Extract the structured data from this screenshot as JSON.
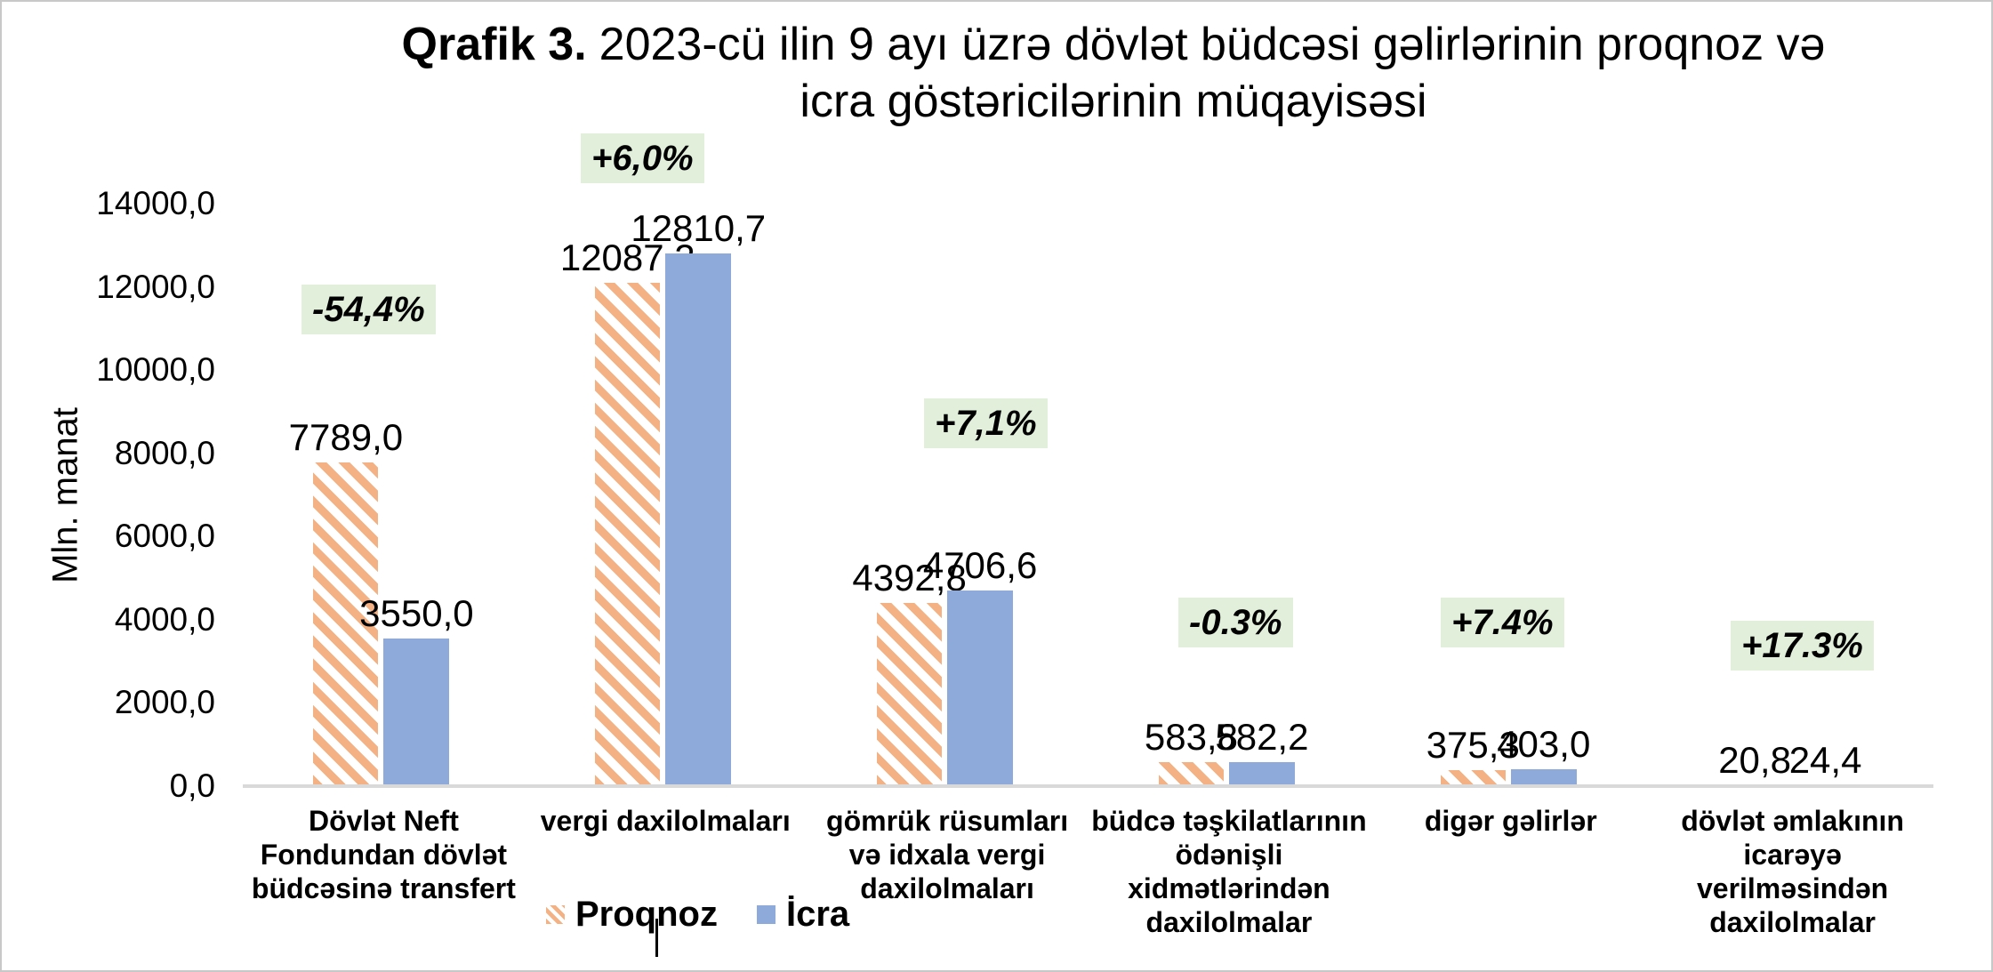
{
  "chart_data": {
    "type": "bar",
    "title": {
      "prefix": "Qrafik 3.",
      "line1_rest": "2023-cü ilin 9 ayı üzrə dövlət büdcəsi gəlirlərinin proqnoz və",
      "line2": "icra göstəricilərinin müqayisəsi"
    },
    "ylabel": "Mln. manat",
    "ylim": [
      0,
      14000
    ],
    "grid": false,
    "legend_position": "bottom-left",
    "yticks": [
      {
        "value": 0,
        "label": "0,0"
      },
      {
        "value": 2000,
        "label": "2000,0"
      },
      {
        "value": 4000,
        "label": "4000,0"
      },
      {
        "value": 6000,
        "label": "6000,0"
      },
      {
        "value": 8000,
        "label": "8000,0"
      },
      {
        "value": 10000,
        "label": "10000,0"
      },
      {
        "value": 12000,
        "label": "12000,0"
      },
      {
        "value": 14000,
        "label": "14000,0"
      }
    ],
    "categories": [
      "Dövlət Neft\nFondundan dövlət\nbüdcəsinə transfert",
      "vergi daxilolmaları",
      "gömrük rüsumları\nvə idxala vergi\ndaxilolmaları",
      "büdcə təşkilatlarının\nödənişli\nxidmətlərindən\ndaxilolmalar",
      "digər gəlirlər",
      "dövlət əmlakının\nicarəyə\nverilməsindən\ndaxilolmalar"
    ],
    "series": [
      {
        "name": "Proqnoz",
        "style": "hatched",
        "color": "#F4B183",
        "values": [
          7789.0,
          12087.2,
          4392.8,
          583.8,
          375.3,
          20.8
        ],
        "labels": [
          "7789,0",
          "12087,2",
          "4392,8",
          "583,8",
          "375,3",
          "20,8"
        ]
      },
      {
        "name": "İcra",
        "style": "solid",
        "color": "#8EAADB",
        "values": [
          3550.0,
          12810.7,
          4706.6,
          582.2,
          403.0,
          24.4
        ],
        "labels": [
          "3550,0",
          "12810,7",
          "4706,6",
          "582,2",
          "403,0",
          "24,4"
        ]
      }
    ],
    "badges": {
      "bg": "#E2EFDA",
      "values": [
        "-54,4%",
        "+6,0%",
        "+7,1%",
        "-0.3%",
        "+7.4%",
        "+17.3%"
      ]
    },
    "colors": {
      "axis_line": "#D9D9D9",
      "text": "#000000",
      "background": "#FFFFFF",
      "border": "#C8C8C8"
    }
  }
}
